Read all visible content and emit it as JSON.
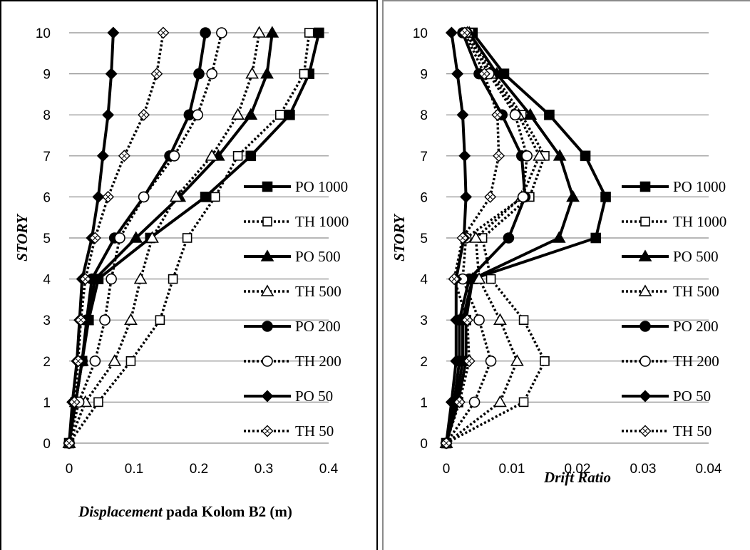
{
  "chart_data": [
    {
      "type": "line",
      "xlabel_italic": "Displacement",
      "xlabel_rest": " pada Kolom B2 (m)",
      "ylabel": "STORY",
      "xlim": [
        0,
        0.4
      ],
      "ylim": [
        0,
        10
      ],
      "x_ticks": [
        "0",
        "0.1",
        "0.2",
        "0.3",
        "0.4"
      ],
      "y_ticks": [
        "0",
        "1",
        "2",
        "3",
        "4",
        "5",
        "6",
        "7",
        "8",
        "9",
        "10"
      ],
      "grid": "horizontal",
      "legend_position": "right",
      "series": [
        {
          "name": "PO 1000",
          "marker": "square-filled",
          "dash": "solid",
          "y": [
            0,
            1,
            2,
            3,
            4,
            5,
            6,
            7,
            8,
            9,
            10
          ],
          "x": [
            0,
            0.01,
            0.02,
            0.03,
            0.045,
            0.125,
            0.21,
            0.28,
            0.34,
            0.37,
            0.385
          ]
        },
        {
          "name": "TH 1000",
          "marker": "square-open",
          "dash": "dotted",
          "y": [
            0,
            1,
            2,
            3,
            4,
            5,
            6,
            7,
            8,
            9,
            10
          ],
          "x": [
            0,
            0.045,
            0.095,
            0.14,
            0.16,
            0.182,
            0.225,
            0.26,
            0.325,
            0.362,
            0.37
          ]
        },
        {
          "name": "PO 500",
          "marker": "triangle-filled",
          "dash": "solid",
          "y": [
            0,
            1,
            2,
            3,
            4,
            5,
            6,
            7,
            8,
            9,
            10
          ],
          "x": [
            0,
            0.01,
            0.02,
            0.028,
            0.04,
            0.103,
            0.17,
            0.23,
            0.28,
            0.305,
            0.313
          ]
        },
        {
          "name": "TH 500",
          "marker": "triangle-open",
          "dash": "dotted",
          "y": [
            0,
            1,
            2,
            3,
            4,
            5,
            6,
            7,
            8,
            9,
            10
          ],
          "x": [
            0,
            0.025,
            0.07,
            0.095,
            0.11,
            0.128,
            0.165,
            0.22,
            0.26,
            0.282,
            0.293
          ]
        },
        {
          "name": "PO 200",
          "marker": "circle-filled",
          "dash": "solid",
          "y": [
            0,
            1,
            2,
            3,
            4,
            5,
            6,
            7,
            8,
            9,
            10
          ],
          "x": [
            0,
            0.01,
            0.02,
            0.027,
            0.035,
            0.07,
            0.115,
            0.155,
            0.185,
            0.2,
            0.21
          ]
        },
        {
          "name": "TH 200",
          "marker": "circle-open",
          "dash": "dotted",
          "y": [
            0,
            1,
            2,
            3,
            4,
            5,
            6,
            7,
            8,
            9,
            10
          ],
          "x": [
            0,
            0.015,
            0.04,
            0.055,
            0.065,
            0.078,
            0.115,
            0.162,
            0.198,
            0.22,
            0.235
          ]
        },
        {
          "name": "PO 50",
          "marker": "diamond-filled",
          "dash": "solid",
          "y": [
            0,
            1,
            2,
            3,
            4,
            5,
            6,
            7,
            8,
            9,
            10
          ],
          "x": [
            0,
            0.005,
            0.012,
            0.016,
            0.02,
            0.035,
            0.045,
            0.052,
            0.06,
            0.065,
            0.068
          ]
        },
        {
          "name": "TH 50",
          "marker": "diamond-open",
          "dash": "dotted",
          "y": [
            0,
            1,
            2,
            3,
            4,
            5,
            6,
            7,
            8,
            9,
            10
          ],
          "x": [
            0,
            0.008,
            0.014,
            0.018,
            0.025,
            0.04,
            0.06,
            0.085,
            0.115,
            0.135,
            0.145
          ]
        }
      ]
    },
    {
      "type": "line",
      "xlabel": "Drift Ratio",
      "ylabel": "STORY",
      "xlim": [
        0,
        0.04
      ],
      "ylim": [
        0,
        10
      ],
      "x_ticks": [
        "0",
        "0.01",
        "0.02",
        "0.03",
        "0.04"
      ],
      "y_ticks": [
        "0",
        "1",
        "2",
        "3",
        "4",
        "5",
        "6",
        "7",
        "8",
        "9",
        "10"
      ],
      "grid": "horizontal",
      "legend_position": "right",
      "series": [
        {
          "name": "PO 1000",
          "marker": "square-filled",
          "dash": "solid",
          "y": [
            0,
            1,
            2,
            3,
            4,
            5,
            6,
            7,
            8,
            9,
            10
          ],
          "x": [
            0,
            0.0018,
            0.003,
            0.003,
            0.004,
            0.0228,
            0.0243,
            0.0212,
            0.0157,
            0.0088,
            0.004
          ]
        },
        {
          "name": "TH 1000",
          "marker": "square-open",
          "dash": "dotted",
          "y": [
            0,
            1,
            2,
            3,
            4,
            5,
            6,
            7,
            8,
            9,
            10
          ],
          "x": [
            0,
            0.0118,
            0.015,
            0.0118,
            0.0068,
            0.0055,
            0.0127,
            0.015,
            0.0115,
            0.0072,
            0.0035
          ]
        },
        {
          "name": "PO 500",
          "marker": "triangle-filled",
          "dash": "solid",
          "y": [
            0,
            1,
            2,
            3,
            4,
            5,
            6,
            7,
            8,
            9,
            10
          ],
          "x": [
            0,
            0.0015,
            0.0025,
            0.0025,
            0.004,
            0.0172,
            0.0193,
            0.0173,
            0.0128,
            0.0077,
            0.0035
          ]
        },
        {
          "name": "TH 500",
          "marker": "triangle-open",
          "dash": "dotted",
          "y": [
            0,
            1,
            2,
            3,
            4,
            5,
            6,
            7,
            8,
            9,
            10
          ],
          "x": [
            0,
            0.0082,
            0.0108,
            0.0082,
            0.005,
            0.0045,
            0.0115,
            0.0142,
            0.011,
            0.0068,
            0.0032
          ]
        },
        {
          "name": "PO 200",
          "marker": "circle-filled",
          "dash": "solid",
          "y": [
            0,
            1,
            2,
            3,
            4,
            5,
            6,
            7,
            8,
            9,
            10
          ],
          "x": [
            0,
            0.0012,
            0.002,
            0.002,
            0.0035,
            0.0095,
            0.012,
            0.0115,
            0.0085,
            0.005,
            0.0025
          ]
        },
        {
          "name": "TH 200",
          "marker": "circle-open",
          "dash": "dotted",
          "y": [
            0,
            1,
            2,
            3,
            4,
            5,
            6,
            7,
            8,
            9,
            10
          ],
          "x": [
            0,
            0.0043,
            0.0068,
            0.005,
            0.0025,
            0.003,
            0.0117,
            0.0123,
            0.0105,
            0.0065,
            0.003
          ]
        },
        {
          "name": "PO 50",
          "marker": "diamond-filled",
          "dash": "solid",
          "y": [
            0,
            1,
            2,
            3,
            4,
            5,
            6,
            7,
            8,
            9,
            10
          ],
          "x": [
            0,
            0.0008,
            0.0015,
            0.0015,
            0.0015,
            0.0027,
            0.003,
            0.0028,
            0.0025,
            0.0017,
            0.0008
          ]
        },
        {
          "name": "TH 50",
          "marker": "diamond-open",
          "dash": "dotted",
          "y": [
            0,
            1,
            2,
            3,
            4,
            5,
            6,
            7,
            8,
            9,
            10
          ],
          "x": [
            0,
            0.002,
            0.0035,
            0.0032,
            0.0012,
            0.0025,
            0.0067,
            0.008,
            0.0078,
            0.0058,
            0.0028
          ]
        }
      ]
    }
  ]
}
